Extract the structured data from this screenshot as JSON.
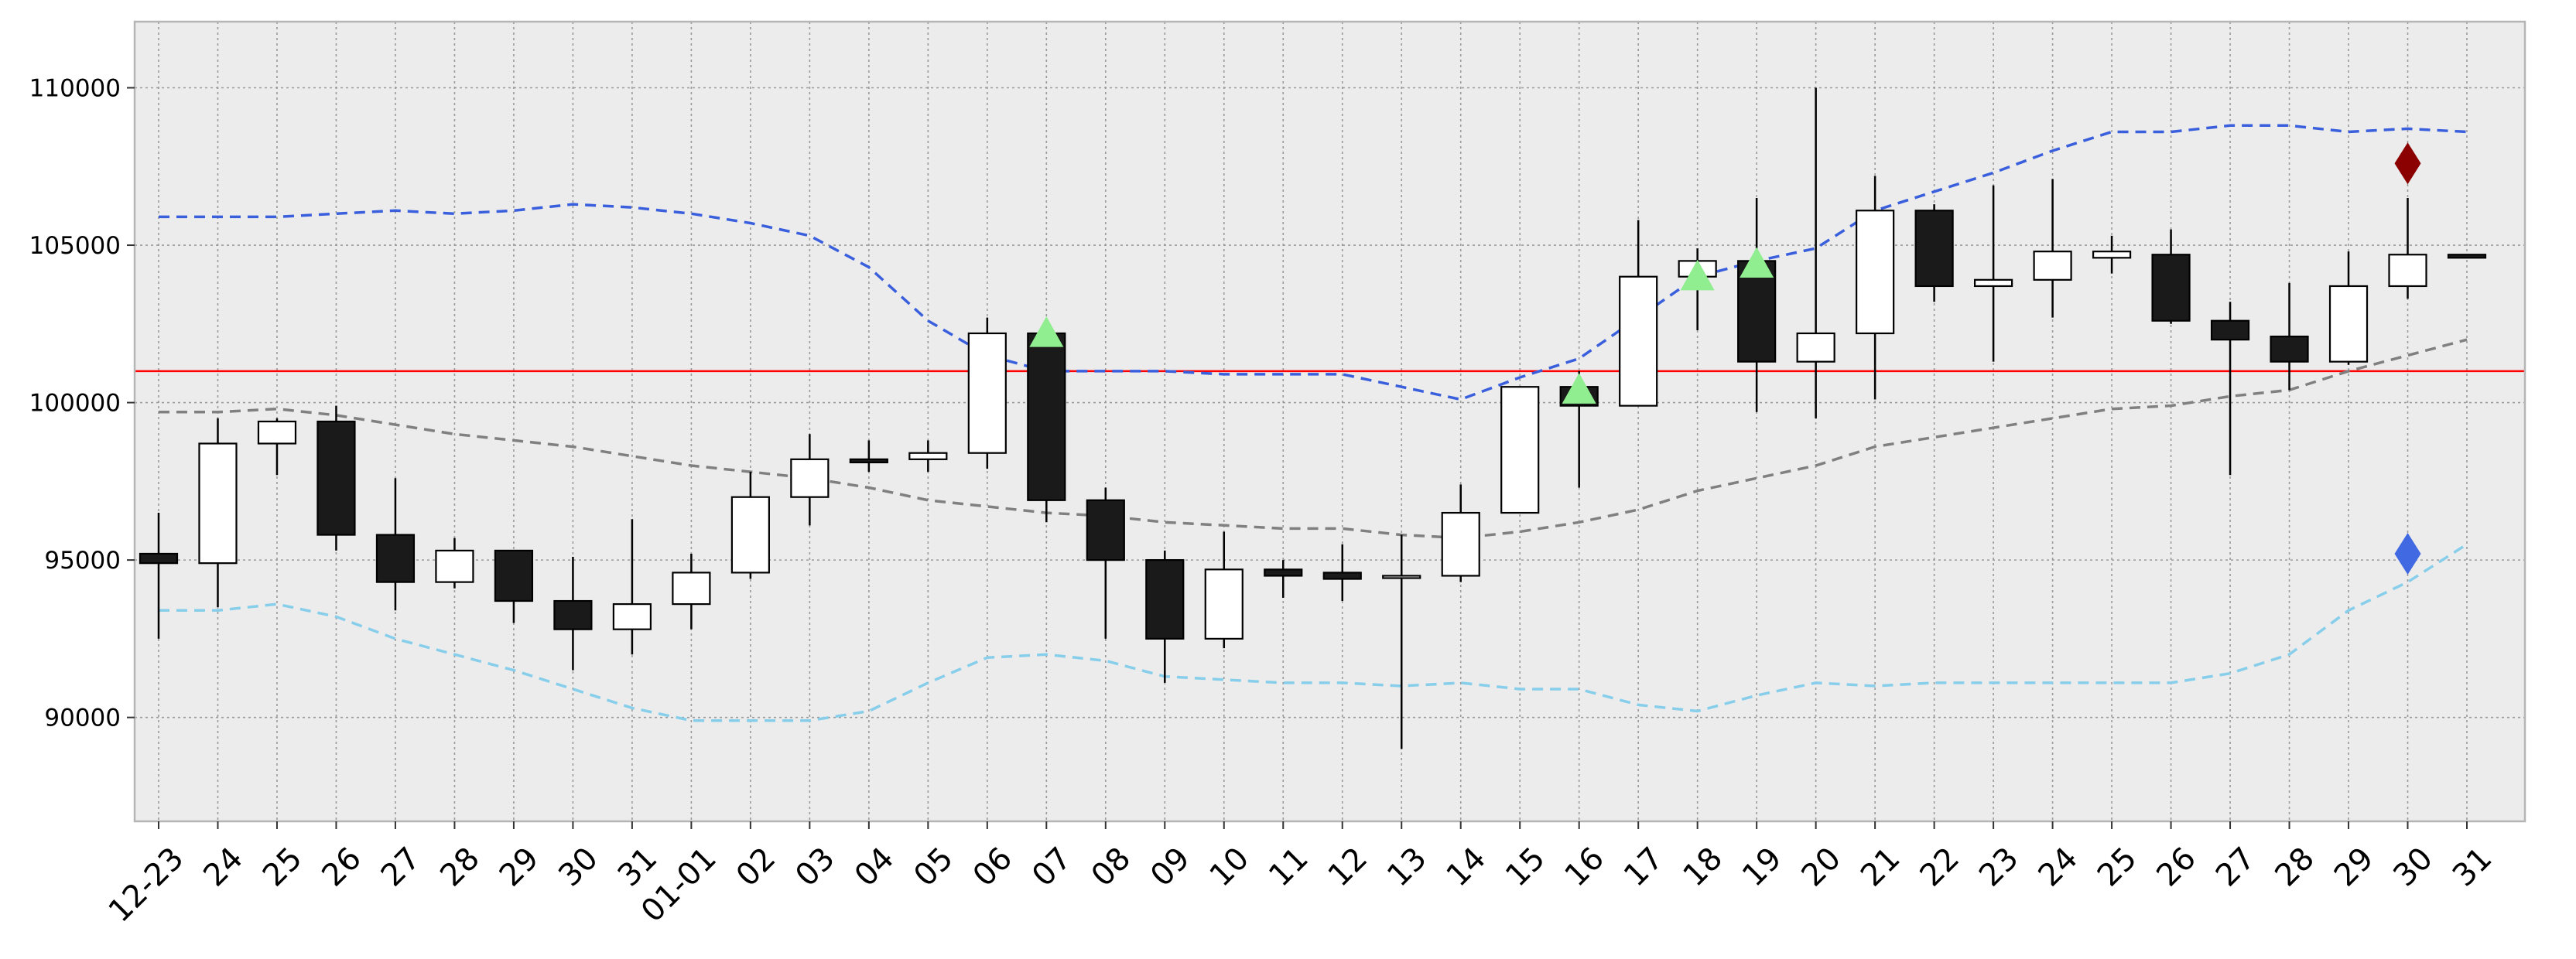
{
  "chart_data": {
    "type": "candlestick",
    "title": "",
    "xlabel": "",
    "ylabel": "",
    "categories": [
      "12-23",
      "24",
      "25",
      "26",
      "27",
      "28",
      "29",
      "30",
      "31",
      "01-01",
      "02",
      "03",
      "04",
      "05",
      "06",
      "07",
      "08",
      "09",
      "10",
      "11",
      "12",
      "13",
      "14",
      "15",
      "16",
      "17",
      "18",
      "19",
      "20",
      "21",
      "22",
      "23",
      "24",
      "25",
      "26",
      "27",
      "28",
      "29",
      "30",
      "31"
    ],
    "ylim": [
      86700,
      112100
    ],
    "yticks": [
      90000,
      95000,
      100000,
      105000,
      110000
    ],
    "ytick_labels": [
      "90000",
      "95000",
      "100000",
      "105000",
      "110000"
    ],
    "grid": true,
    "candles": [
      {
        "open": 95200,
        "high": 96500,
        "low": 92500,
        "close": 94900
      },
      {
        "open": 94900,
        "high": 99500,
        "low": 93500,
        "close": 98700
      },
      {
        "open": 98700,
        "high": 99500,
        "low": 97700,
        "close": 99400
      },
      {
        "open": 99400,
        "high": 99900,
        "low": 95300,
        "close": 95800
      },
      {
        "open": 95800,
        "high": 97600,
        "low": 93400,
        "close": 94300
      },
      {
        "open": 94300,
        "high": 95700,
        "low": 94100,
        "close": 95300
      },
      {
        "open": 95300,
        "high": 95300,
        "low": 93000,
        "close": 93700
      },
      {
        "open": 93700,
        "high": 95100,
        "low": 91500,
        "close": 92800
      },
      {
        "open": 92800,
        "high": 96300,
        "low": 92000,
        "close": 93600
      },
      {
        "open": 93600,
        "high": 95200,
        "low": 92800,
        "close": 94600
      },
      {
        "open": 94600,
        "high": 97800,
        "low": 94400,
        "close": 97000
      },
      {
        "open": 97000,
        "high": 99000,
        "low": 96100,
        "close": 98200
      },
      {
        "open": 98200,
        "high": 98800,
        "low": 97800,
        "close": 98100
      },
      {
        "open": 98200,
        "high": 98800,
        "low": 97800,
        "close": 98400
      },
      {
        "open": 98400,
        "high": 102700,
        "low": 97900,
        "close": 102200
      },
      {
        "open": 102200,
        "high": 102500,
        "low": 96200,
        "close": 96900
      },
      {
        "open": 96900,
        "high": 97300,
        "low": 92500,
        "close": 95000
      },
      {
        "open": 95000,
        "high": 95300,
        "low": 91100,
        "close": 92500
      },
      {
        "open": 92500,
        "high": 95900,
        "low": 92200,
        "close": 94700
      },
      {
        "open": 94700,
        "high": 95000,
        "low": 93800,
        "close": 94500
      },
      {
        "open": 94600,
        "high": 95500,
        "low": 93700,
        "close": 94400
      },
      {
        "open": 94500,
        "high": 95800,
        "low": 89000,
        "close": 94500
      },
      {
        "open": 94500,
        "high": 97400,
        "low": 94300,
        "close": 96500
      },
      {
        "open": 96500,
        "high": 100500,
        "low": 96500,
        "close": 100500
      },
      {
        "open": 100500,
        "high": 101000,
        "low": 97300,
        "close": 99900
      },
      {
        "open": 99900,
        "high": 105800,
        "low": 99900,
        "close": 104000
      },
      {
        "open": 104000,
        "high": 104900,
        "low": 102300,
        "close": 104500
      },
      {
        "open": 104500,
        "high": 106500,
        "low": 99700,
        "close": 101300
      },
      {
        "open": 101300,
        "high": 110000,
        "low": 99500,
        "close": 102200
      },
      {
        "open": 102200,
        "high": 107200,
        "low": 100100,
        "close": 106100
      },
      {
        "open": 106100,
        "high": 106300,
        "low": 103200,
        "close": 103700
      },
      {
        "open": 103700,
        "high": 106900,
        "low": 101300,
        "close": 103900
      },
      {
        "open": 103900,
        "high": 107100,
        "low": 102700,
        "close": 104800
      },
      {
        "open": 104600,
        "high": 105300,
        "low": 104100,
        "close": 104800
      },
      {
        "open": 104700,
        "high": 105500,
        "low": 102500,
        "close": 102600
      },
      {
        "open": 102600,
        "high": 103200,
        "low": 97700,
        "close": 102000
      },
      {
        "open": 102100,
        "high": 103800,
        "low": 100400,
        "close": 101300
      },
      {
        "open": 101300,
        "high": 104800,
        "low": 101200,
        "close": 103700
      },
      {
        "open": 103700,
        "high": 106500,
        "low": 103300,
        "close": 104700
      },
      {
        "open": 104700,
        "high": 104700,
        "low": 104600,
        "close": 104600
      }
    ],
    "horizontal_line": {
      "value": 101000,
      "color": "#ff0000"
    },
    "lines": [
      {
        "values": [
          105900,
          105900,
          105900,
          106000,
          106100,
          106000,
          106100,
          106300,
          106200,
          106000,
          105700,
          105300,
          104300,
          102600,
          101500,
          101000,
          101000,
          101000,
          100900,
          100900,
          100900,
          100500,
          100100,
          100800,
          101400,
          102700,
          104000,
          104500,
          104900,
          106100,
          106700,
          107300,
          108000,
          108600,
          108600,
          108800,
          108800,
          108600,
          108700,
          108600
        ],
        "color": "#3a5fdd",
        "dash": "14,9"
      },
      {
        "values": [
          99700,
          99700,
          99800,
          99600,
          99300,
          99000,
          98800,
          98600,
          98300,
          98000,
          97800,
          97600,
          97300,
          96900,
          96700,
          96500,
          96400,
          96200,
          96100,
          96000,
          96000,
          95800,
          95700,
          95900,
          96200,
          96600,
          97200,
          97600,
          98000,
          98600,
          98900,
          99200,
          99500,
          99800,
          99900,
          100200,
          100400,
          101000,
          101500,
          102000
        ],
        "color": "#808080",
        "dash": "14,9"
      },
      {
        "values": [
          93400,
          93400,
          93600,
          93200,
          92500,
          92000,
          91500,
          90900,
          90300,
          89900,
          89900,
          89900,
          90200,
          91100,
          91900,
          92000,
          91800,
          91300,
          91200,
          91100,
          91100,
          91000,
          91100,
          90900,
          90900,
          90400,
          90200,
          90700,
          91100,
          91000,
          91100,
          91100,
          91100,
          91100,
          91100,
          91400,
          92000,
          93400,
          94300,
          95500
        ],
        "color": "#87ceeb",
        "dash": "14,9"
      }
    ],
    "markers": [
      {
        "index": 15,
        "value": 102200,
        "shape": "triangle-up",
        "color": "#90ee90"
      },
      {
        "index": 24,
        "value": 100400,
        "shape": "triangle-up",
        "color": "#90ee90"
      },
      {
        "index": 26,
        "value": 104000,
        "shape": "triangle-up",
        "color": "#90ee90"
      },
      {
        "index": 27,
        "value": 104400,
        "shape": "triangle-up",
        "color": "#90ee90"
      },
      {
        "index": 38,
        "value": 107600,
        "shape": "diamond",
        "color": "#8b0000"
      },
      {
        "index": 38,
        "value": 95200,
        "shape": "diamond",
        "color": "#4169e1"
      }
    ],
    "up_color": "#ffffff",
    "down_color": "#1a1a1a",
    "background": "#ececec"
  }
}
